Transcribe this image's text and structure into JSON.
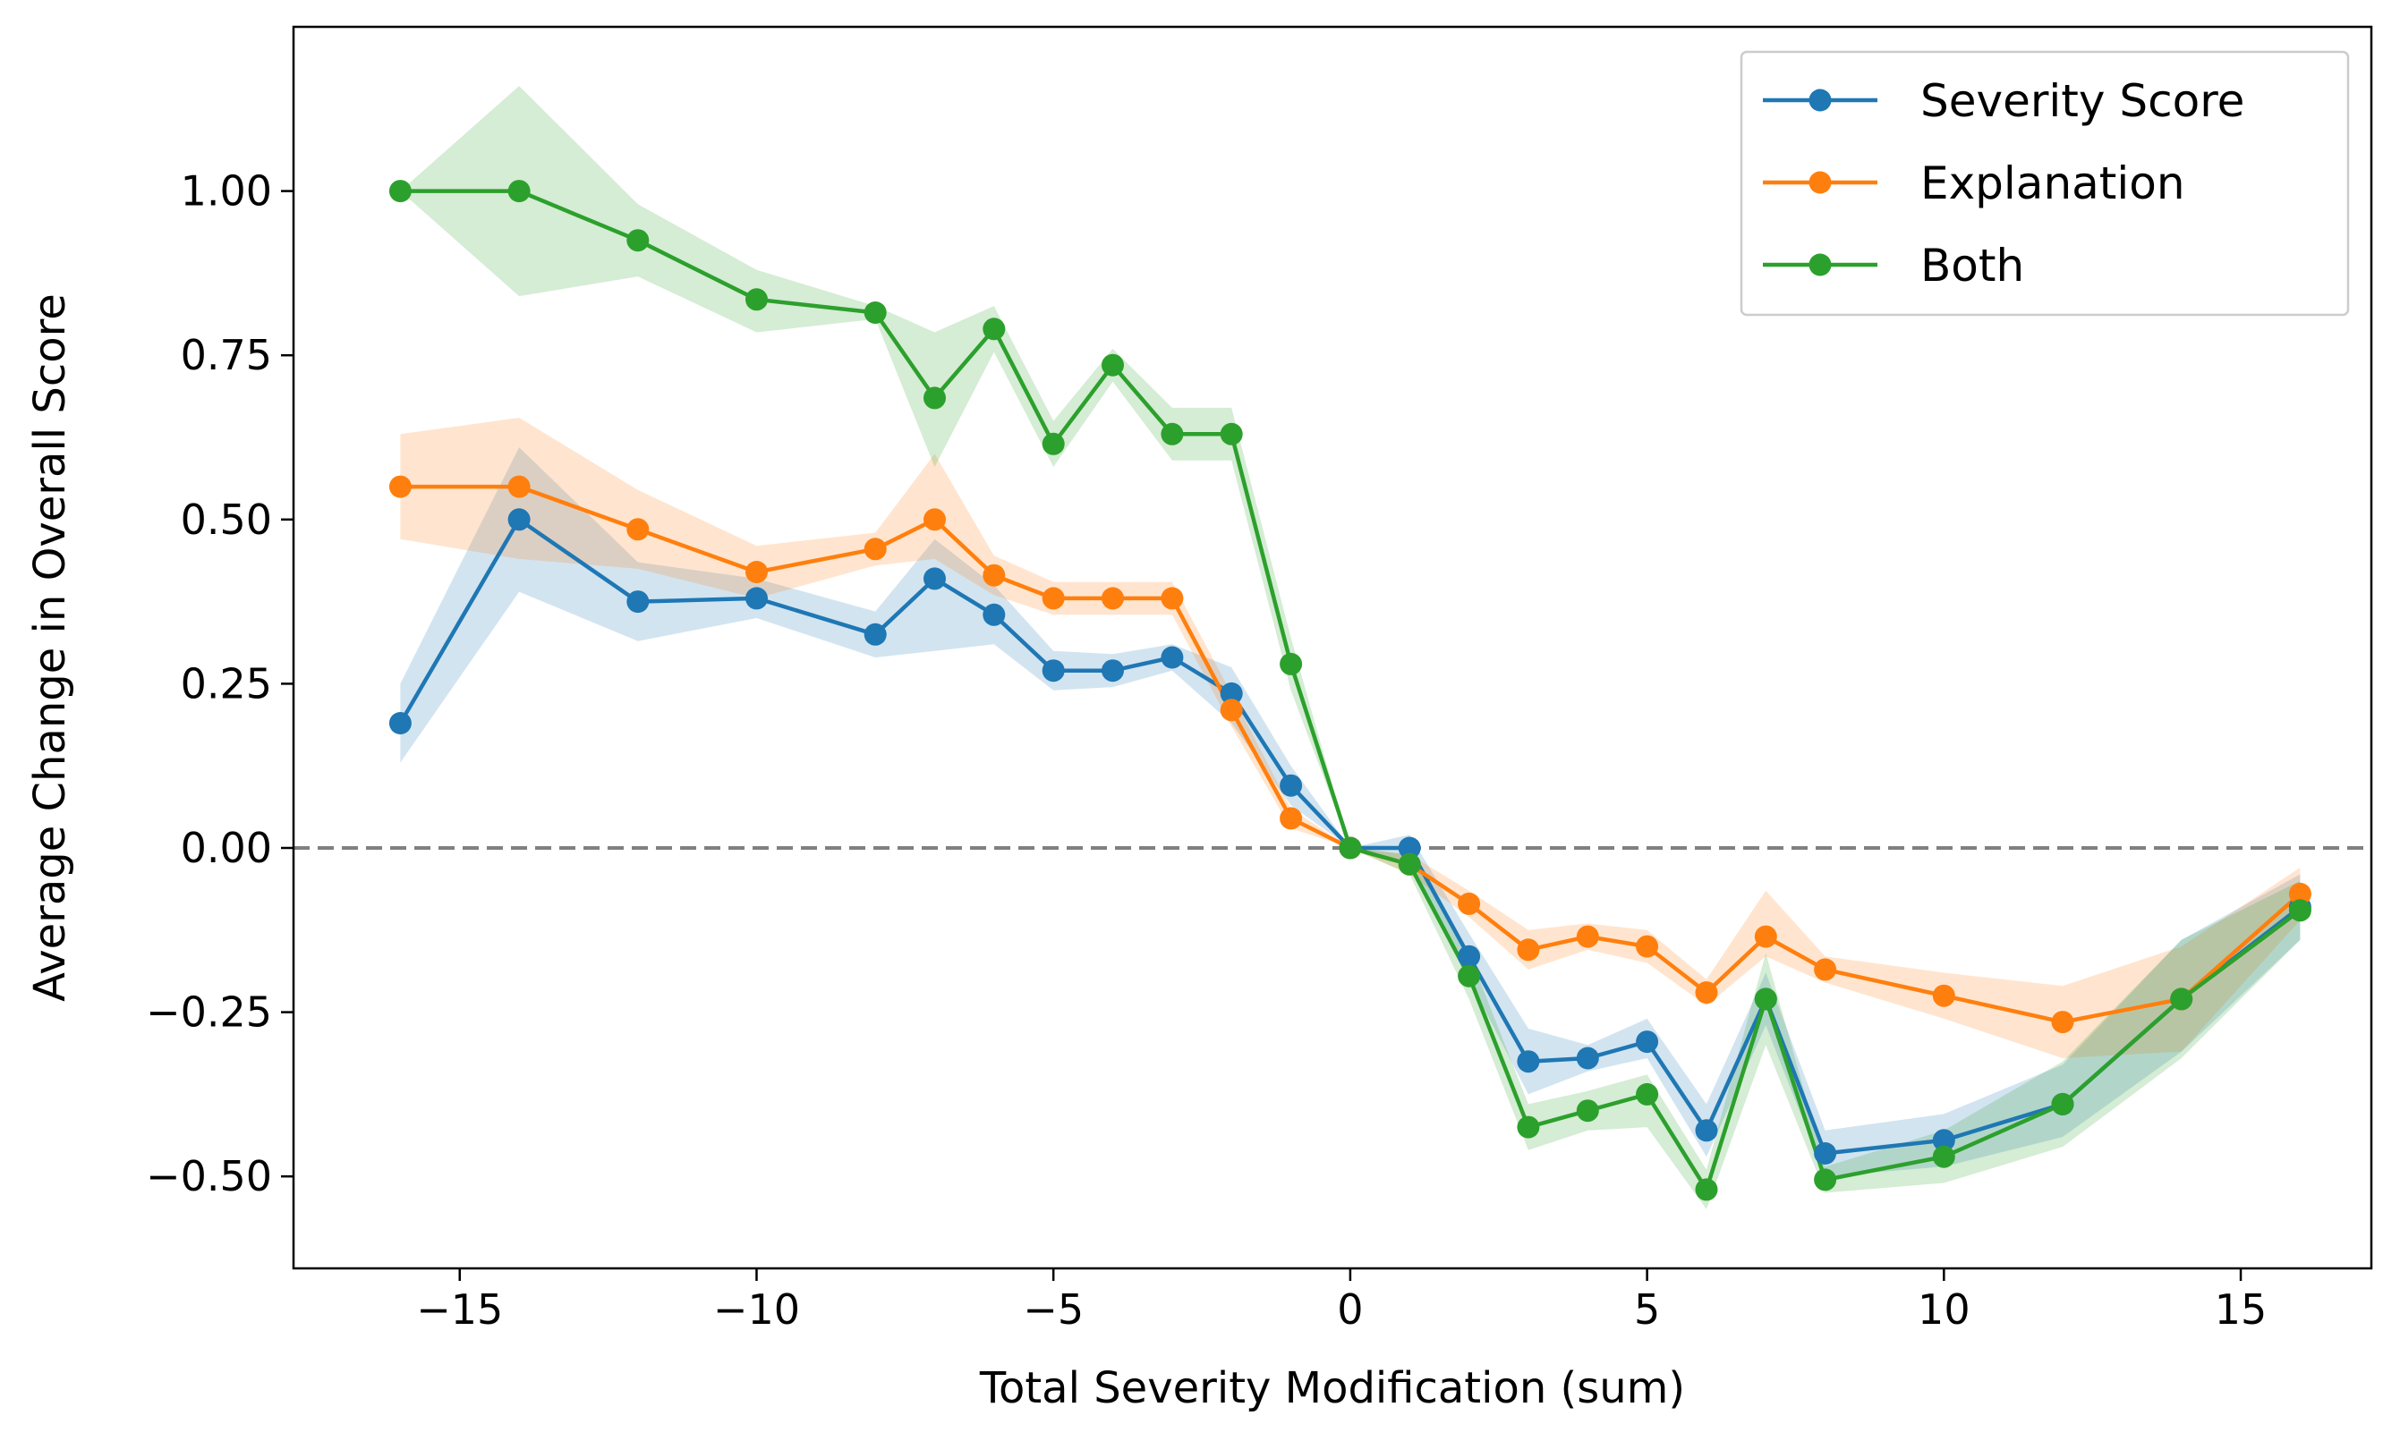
{
  "chart_data": {
    "type": "line",
    "xlabel": "Total Severity Modification (sum)",
    "ylabel": "Average Change in Overall Score",
    "xlim": [
      -17.8,
      17.2
    ],
    "ylim": [
      -0.64,
      1.25
    ],
    "xticks": [
      -15,
      -10,
      -5,
      0,
      5,
      10,
      15
    ],
    "yticks": [
      -0.5,
      -0.25,
      0.0,
      0.25,
      0.5,
      0.75,
      1.0
    ],
    "xtick_labels": [
      "−15",
      "−10",
      "−5",
      "0",
      "5",
      "10",
      "15"
    ],
    "ytick_labels": [
      "−0.50",
      "−0.25",
      "0.00",
      "0.25",
      "0.50",
      "0.75",
      "1.00"
    ],
    "reference_line": {
      "y": 0,
      "style": "dashed",
      "color": "#808080"
    },
    "grid": false,
    "legend_position": "top-right",
    "series": [
      {
        "name": "Severity Score",
        "color": "#1f77b4",
        "x": [
          -16,
          -14,
          -12,
          -10,
          -8,
          -7,
          -6,
          -5,
          -4,
          -3,
          -2,
          -1,
          0,
          1,
          2,
          3,
          4,
          5,
          6,
          7,
          8,
          10,
          12,
          14,
          16
        ],
        "y": [
          0.19,
          0.5,
          0.375,
          0.38,
          0.325,
          0.41,
          0.355,
          0.27,
          0.27,
          0.29,
          0.235,
          0.095,
          0.0,
          0.0,
          -0.165,
          -0.325,
          -0.32,
          -0.295,
          -0.43,
          -0.23,
          -0.465,
          -0.445,
          -0.39,
          -0.23,
          -0.09
        ],
        "lower": [
          0.13,
          0.39,
          0.315,
          0.35,
          0.29,
          0.3,
          0.31,
          0.24,
          0.245,
          0.27,
          0.19,
          0.065,
          0.0,
          -0.02,
          -0.2,
          -0.375,
          -0.34,
          -0.32,
          -0.47,
          -0.27,
          -0.5,
          -0.485,
          -0.44,
          -0.31,
          -0.14
        ],
        "upper": [
          0.25,
          0.61,
          0.435,
          0.41,
          0.36,
          0.47,
          0.4,
          0.3,
          0.295,
          0.31,
          0.275,
          0.125,
          0.0,
          0.02,
          -0.13,
          -0.275,
          -0.3,
          -0.26,
          -0.39,
          -0.19,
          -0.43,
          -0.405,
          -0.33,
          -0.14,
          -0.04
        ]
      },
      {
        "name": "Explanation",
        "color": "#ff7f0e",
        "x": [
          -16,
          -14,
          -12,
          -10,
          -8,
          -7,
          -6,
          -5,
          -4,
          -3,
          -2,
          -1,
          0,
          1,
          2,
          3,
          4,
          5,
          6,
          7,
          8,
          10,
          12,
          14,
          16
        ],
        "y": [
          0.55,
          0.55,
          0.485,
          0.42,
          0.455,
          0.5,
          0.415,
          0.38,
          0.38,
          0.38,
          0.21,
          0.045,
          0.0,
          -0.025,
          -0.085,
          -0.155,
          -0.135,
          -0.15,
          -0.22,
          -0.135,
          -0.185,
          -0.225,
          -0.265,
          -0.23,
          -0.07
        ],
        "lower": [
          0.47,
          0.44,
          0.425,
          0.38,
          0.43,
          0.44,
          0.385,
          0.355,
          0.355,
          0.355,
          0.185,
          0.03,
          0.0,
          -0.04,
          -0.105,
          -0.185,
          -0.155,
          -0.175,
          -0.24,
          -0.165,
          -0.205,
          -0.26,
          -0.32,
          -0.31,
          -0.11
        ],
        "upper": [
          0.63,
          0.655,
          0.545,
          0.46,
          0.48,
          0.6,
          0.445,
          0.405,
          0.405,
          0.405,
          0.235,
          0.06,
          0.0,
          -0.01,
          -0.065,
          -0.125,
          -0.115,
          -0.125,
          -0.2,
          -0.065,
          -0.165,
          -0.19,
          -0.21,
          -0.15,
          -0.03
        ]
      },
      {
        "name": "Both",
        "color": "#2ca02c",
        "x": [
          -16,
          -14,
          -12,
          -10,
          -8,
          -7,
          -6,
          -5,
          -4,
          -3,
          -2,
          -1,
          0,
          1,
          2,
          3,
          4,
          5,
          6,
          7,
          8,
          10,
          12,
          14,
          16
        ],
        "y": [
          1.0,
          1.0,
          0.925,
          0.835,
          0.815,
          0.685,
          0.79,
          0.615,
          0.735,
          0.63,
          0.63,
          0.28,
          0.0,
          -0.025,
          -0.195,
          -0.425,
          -0.4,
          -0.375,
          -0.52,
          -0.23,
          -0.505,
          -0.47,
          -0.39,
          -0.23,
          -0.095
        ],
        "lower": [
          1.0,
          0.84,
          0.87,
          0.785,
          0.805,
          0.58,
          0.755,
          0.58,
          0.71,
          0.59,
          0.59,
          0.24,
          0.0,
          -0.04,
          -0.23,
          -0.46,
          -0.43,
          -0.425,
          -0.55,
          -0.3,
          -0.525,
          -0.51,
          -0.455,
          -0.32,
          -0.14
        ],
        "upper": [
          1.0,
          1.16,
          0.98,
          0.88,
          0.825,
          0.785,
          0.825,
          0.65,
          0.76,
          0.67,
          0.67,
          0.32,
          0.0,
          -0.01,
          -0.16,
          -0.39,
          -0.37,
          -0.345,
          -0.49,
          -0.16,
          -0.485,
          -0.43,
          -0.325,
          -0.14,
          -0.05
        ]
      }
    ]
  }
}
